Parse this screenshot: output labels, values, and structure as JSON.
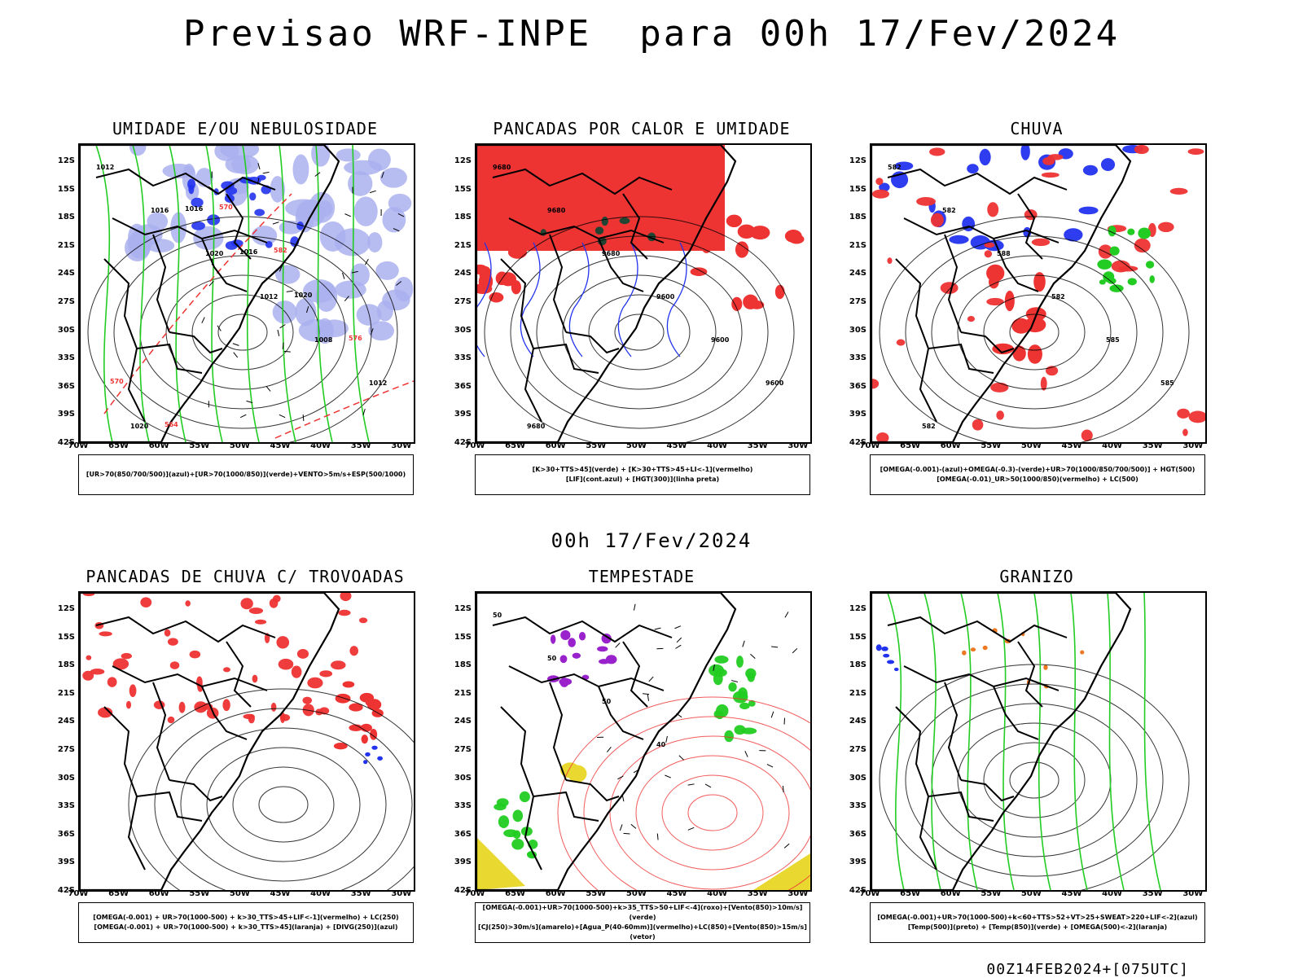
{
  "title": "Previsao WRF-INPE  para 00h 17/Fev/2024",
  "subtitle_date": "00h 17/Fev/2024",
  "footer_stamp": "00Z14FEB2024+[075UTC]",
  "axes": {
    "lat_labels": [
      "12S",
      "15S",
      "18S",
      "21S",
      "24S",
      "27S",
      "30S",
      "33S",
      "36S",
      "39S",
      "42S"
    ],
    "lon_labels": [
      "70W",
      "65W",
      "60W",
      "55W",
      "50W",
      "45W",
      "40W",
      "35W",
      "30W"
    ]
  },
  "colors": {
    "black": "#000000",
    "green": "#22cc22",
    "red": "#ee3333",
    "blue": "#2233ee",
    "lavender": "#aab0ee",
    "purple": "#9922cc",
    "yellow": "#e8d830",
    "orange": "#ee7722",
    "darkgreen": "#224433"
  },
  "panels": [
    {
      "title": "UMIDADE E/OU NEBULOSIDADE",
      "legend": [
        "[UR>70(850/700/500)](azul)+[UR>70(1000/850)](verde)+VENTO>5m/s+ESP(500/1000)"
      ],
      "contour_labels": [
        "1012",
        "1016",
        "1020",
        "1012",
        "1008",
        "1012",
        "1020",
        "1016",
        "1016",
        "1020",
        "576",
        "570",
        "564",
        "570",
        "582"
      ]
    },
    {
      "title": "PANCADAS POR CALOR E UMIDADE",
      "legend": [
        "[K>30+TTS>45](verde) + [K>30+TTS>45+LI<-1](vermelho)",
        "[LIF](cont.azul) + [HGT(300)](linha preta)"
      ],
      "contour_labels": [
        "9680",
        "9680",
        "9680",
        "9600",
        "9600",
        "9600",
        "9680"
      ]
    },
    {
      "title": "CHUVA",
      "legend": [
        "[OMEGA(-0.001)-(azul)+OMEGA(-0.3)-(verde)+UR>70(1000/850/700/500)] + HGT(500)",
        "[OMEGA(-0.01)_UR>50(1000/850)(vermelho) + LC(500)"
      ],
      "contour_labels": [
        "582",
        "582",
        "588",
        "582",
        "585",
        "585",
        "582"
      ]
    },
    {
      "title": "PANCADAS DE CHUVA C/ TROVOADAS",
      "legend": [
        "[OMEGA(-0.001) + UR>70(1000-500) + k>30_TTS>45+LIF<-1](vermelho) + LC(250)",
        "[OMEGA(-0.001) + UR>70(1000-500) + k>30_TTS>45](laranja) + [DIVG(250)](azul)"
      ],
      "contour_labels": []
    },
    {
      "title": "TEMPESTADE",
      "legend": [
        "[OMEGA(-0.001)+UR>70(1000-500)+k>35_TTS>50+LIF<-4](roxo)+[Vento(850)>10m/s](verde)",
        "[CJ(250)>30m/s](amarelo)+[Agua_P(40-60mm)](vermelho)+LC(850)+[Vento(850)>15m/s](vetor)"
      ],
      "contour_labels": [
        "50",
        "50",
        "50",
        "40"
      ]
    },
    {
      "title": "GRANIZO",
      "legend": [
        "[OMEGA(-0.001)+UR>70(1000-500)+k<60+TTS>52+VT>25+SWEAT>220+LIF<-2](azul)",
        "[Temp(500)](preto) + [Temp(850)](verde) + [OMEGA(500)<-2](laranja)"
      ],
      "contour_labels": []
    }
  ]
}
